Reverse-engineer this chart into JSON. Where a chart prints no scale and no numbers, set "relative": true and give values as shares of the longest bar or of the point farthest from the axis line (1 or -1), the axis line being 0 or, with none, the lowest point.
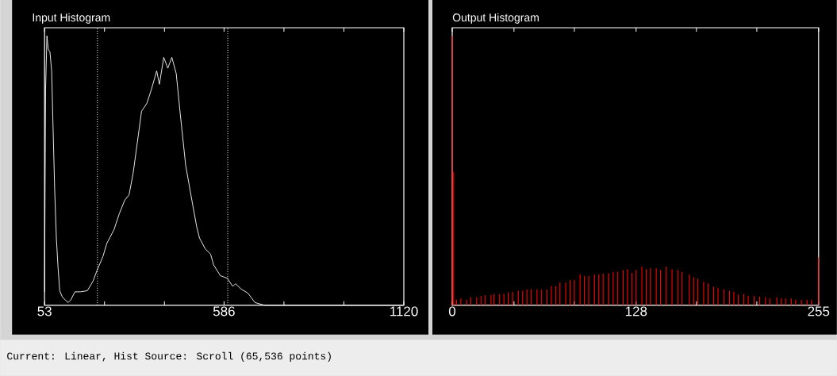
{
  "chart_data": [
    {
      "type": "line",
      "title": "Input Histogram",
      "relative": true,
      "color": "#ffffff",
      "x": [
        53,
        54,
        56,
        60,
        64,
        69,
        74,
        78,
        83,
        88,
        93,
        98,
        106,
        123,
        131,
        143,
        160,
        180,
        197,
        209,
        226,
        238,
        259,
        275,
        291,
        304,
        316,
        328,
        341,
        357,
        370,
        386,
        394,
        407,
        419,
        431,
        444,
        456,
        472,
        489,
        505,
        513,
        530,
        546,
        555,
        575,
        596,
        612,
        620,
        637,
        657,
        678,
        707,
        1118
      ],
      "values": [
        0.05,
        0.335,
        0.8,
        1.0,
        0.95,
        0.94,
        0.87,
        0.67,
        0.43,
        0.25,
        0.14,
        0.054,
        0.03,
        0.01,
        0.02,
        0.05,
        0.05,
        0.054,
        0.09,
        0.13,
        0.18,
        0.23,
        0.28,
        0.34,
        0.39,
        0.41,
        0.49,
        0.6,
        0.72,
        0.75,
        0.8,
        0.87,
        0.82,
        0.92,
        0.88,
        0.92,
        0.86,
        0.71,
        0.52,
        0.4,
        0.29,
        0.25,
        0.21,
        0.19,
        0.15,
        0.11,
        0.1,
        0.07,
        0.08,
        0.06,
        0.045,
        0.01,
        0,
        0
      ],
      "xlim": [
        53,
        1120
      ],
      "xticks": [
        53,
        {
          "value": 231,
          "label": null
        },
        {
          "value": 409,
          "label": null
        },
        586,
        {
          "value": 764,
          "label": null
        },
        {
          "value": 942,
          "label": null
        },
        1120
      ],
      "ref_lines": [
        {
          "axis": "x",
          "value": 210,
          "color": "#ffffff",
          "line_style": "dotted"
        },
        {
          "axis": "x",
          "value": 597,
          "color": "#ffffff",
          "line_style": "dotted"
        }
      ],
      "annotations": [
        "Current: Linear, Hist Source: Scroll (65,536 points)"
      ]
    },
    {
      "type": "bar",
      "title": "Output Histogram",
      "relative": true,
      "color": "#ff0000",
      "x": [
        0,
        1,
        3,
        6,
        10,
        13,
        17,
        20,
        23,
        27,
        29,
        33,
        36,
        39,
        42,
        46,
        49,
        52,
        55,
        59,
        62,
        66,
        69,
        72,
        75,
        79,
        82,
        85,
        89,
        92,
        95,
        99,
        102,
        105,
        109,
        112,
        115,
        119,
        122,
        125,
        128,
        132,
        135,
        138,
        142,
        145,
        149,
        153,
        157,
        160,
        165,
        168,
        171,
        175,
        178,
        182,
        185,
        189,
        193,
        196,
        199,
        203,
        206,
        210,
        214,
        218,
        221,
        226,
        229,
        232,
        236,
        239,
        243,
        247,
        250,
        255
      ],
      "values": [
        1.0,
        0.495,
        0.02,
        0.025,
        0.02,
        0.03,
        0.03,
        0.035,
        0.038,
        0.038,
        0.042,
        0.042,
        0.042,
        0.048,
        0.05,
        0.054,
        0.054,
        0.059,
        0.059,
        0.059,
        0.059,
        0.059,
        0.071,
        0.071,
        0.084,
        0.084,
        0.094,
        0.094,
        0.114,
        0.109,
        0.109,
        0.114,
        0.114,
        0.117,
        0.119,
        0.124,
        0.124,
        0.131,
        0.134,
        0.121,
        0.131,
        0.144,
        0.134,
        0.137,
        0.137,
        0.131,
        0.144,
        0.134,
        0.131,
        0.124,
        0.114,
        0.104,
        0.099,
        0.087,
        0.081,
        0.069,
        0.064,
        0.059,
        0.054,
        0.05,
        0.04,
        0.042,
        0.035,
        0.035,
        0.032,
        0.03,
        0.025,
        0.03,
        0.025,
        0.025,
        0.025,
        0.02,
        0.02,
        0.02,
        0.02,
        0.178
      ],
      "xlim": [
        0,
        255
      ],
      "xticks": [
        0,
        {
          "value": 43,
          "label": null
        },
        {
          "value": 85,
          "label": null
        },
        128,
        {
          "value": 170,
          "label": null
        },
        {
          "value": 212,
          "label": null
        },
        255
      ]
    }
  ]
}
